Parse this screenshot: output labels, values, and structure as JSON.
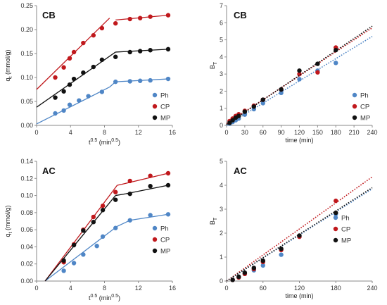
{
  "colors": {
    "Ph": "#4f86c6",
    "CP": "#c0181c",
    "MP": "#111111"
  },
  "chart_data": [
    {
      "type": "scatter",
      "title": "CB",
      "xlabel": "t",
      "xlabel_sup": "0.5",
      "xlabel_unit": " (min",
      "xlabel_unit_sup": "0.5",
      "xlabel_close": ")",
      "ylabel": "q",
      "ylabel_sub": "t",
      "ylabel_unit": " (mmol/g)",
      "xlim": [
        0,
        16
      ],
      "ylim": [
        0,
        0.25
      ],
      "xticks": [
        "0",
        "4",
        "8",
        "12",
        "16"
      ],
      "yticks": [
        "0.00",
        "0.05",
        "0.10",
        "0.15",
        "0.20",
        "0.25"
      ],
      "legend": "bottom-right",
      "series": [
        {
          "name": "Ph",
          "points": [
            [
              2.2,
              0.025
            ],
            [
              3.2,
              0.031
            ],
            [
              3.9,
              0.043
            ],
            [
              5.0,
              0.052
            ],
            [
              6.1,
              0.061
            ],
            [
              7.7,
              0.07
            ],
            [
              9.3,
              0.091
            ],
            [
              11.0,
              0.092
            ],
            [
              12.2,
              0.093
            ],
            [
              13.4,
              0.094
            ],
            [
              15.5,
              0.097
            ]
          ],
          "lines": [
            [
              [
                0,
                0.003
              ],
              [
                8.6,
                0.08
              ]
            ],
            [
              [
                8.6,
                0.08
              ],
              [
                9.3,
                0.091
              ]
            ],
            [
              [
                9.3,
                0.091
              ],
              [
                15.5,
                0.097
              ]
            ]
          ]
        },
        {
          "name": "CP",
          "points": [
            [
              2.2,
              0.1
            ],
            [
              3.2,
              0.121
            ],
            [
              3.9,
              0.14
            ],
            [
              4.4,
              0.153
            ],
            [
              5.5,
              0.172
            ],
            [
              6.7,
              0.188
            ],
            [
              7.7,
              0.203
            ],
            [
              9.3,
              0.213
            ],
            [
              11.0,
              0.222
            ],
            [
              12.2,
              0.224
            ],
            [
              13.4,
              0.227
            ],
            [
              15.5,
              0.23
            ]
          ],
          "lines": [
            [
              [
                0,
                0.075
              ],
              [
                8.6,
                0.224
              ]
            ],
            [
              [
                9.3,
                0.22
              ],
              [
                15.5,
                0.23
              ]
            ]
          ]
        },
        {
          "name": "MP",
          "points": [
            [
              2.2,
              0.058
            ],
            [
              3.2,
              0.071
            ],
            [
              3.9,
              0.085
            ],
            [
              4.4,
              0.097
            ],
            [
              5.5,
              0.11
            ],
            [
              6.7,
              0.122
            ],
            [
              7.7,
              0.137
            ],
            [
              9.3,
              0.143
            ],
            [
              11.0,
              0.153
            ],
            [
              12.2,
              0.155
            ],
            [
              13.4,
              0.157
            ],
            [
              15.5,
              0.159
            ]
          ],
          "lines": [
            [
              [
                0,
                0.038
              ],
              [
                9.3,
                0.153
              ]
            ],
            [
              [
                9.3,
                0.153
              ],
              [
                15.5,
                0.159
              ]
            ]
          ]
        }
      ]
    },
    {
      "type": "scatter",
      "title": "CB",
      "xlabel": "time (min)",
      "ylabel": "B",
      "ylabel_sub": "T",
      "xlim": [
        0,
        240
      ],
      "ylim": [
        0,
        7
      ],
      "xticks": [
        "0",
        "30",
        "60",
        "90",
        "120",
        "150",
        "180",
        "210",
        "240"
      ],
      "yticks": [
        "0",
        "1",
        "2",
        "3",
        "4",
        "5",
        "6",
        "7"
      ],
      "legend": "bottom-right",
      "series": [
        {
          "name": "Ph",
          "points": [
            [
              5,
              0.1
            ],
            [
              10,
              0.2
            ],
            [
              15,
              0.3
            ],
            [
              20,
              0.4
            ],
            [
              30,
              0.63
            ],
            [
              45,
              0.95
            ],
            [
              60,
              1.3
            ],
            [
              90,
              1.9
            ],
            [
              120,
              2.7
            ],
            [
              150,
              3.2
            ],
            [
              180,
              3.65
            ]
          ],
          "trend": [
            [
              0,
              0
            ],
            [
              240,
              5.2
            ]
          ]
        },
        {
          "name": "CP",
          "points": [
            [
              5,
              0.25
            ],
            [
              10,
              0.4
            ],
            [
              15,
              0.55
            ],
            [
              20,
              0.65
            ],
            [
              30,
              0.85
            ],
            [
              45,
              1.15
            ],
            [
              60,
              1.5
            ],
            [
              90,
              2.1
            ],
            [
              120,
              3.0
            ],
            [
              150,
              3.1
            ],
            [
              180,
              4.55
            ]
          ],
          "trend": [
            [
              0,
              0.1
            ],
            [
              240,
              5.7
            ]
          ]
        },
        {
          "name": "MP",
          "points": [
            [
              5,
              0.15
            ],
            [
              10,
              0.3
            ],
            [
              15,
              0.45
            ],
            [
              20,
              0.55
            ],
            [
              30,
              0.8
            ],
            [
              45,
              1.1
            ],
            [
              60,
              1.5
            ],
            [
              90,
              2.1
            ],
            [
              120,
              3.2
            ],
            [
              150,
              3.6
            ],
            [
              180,
              4.4
            ]
          ],
          "trend": [
            [
              0,
              0.05
            ],
            [
              240,
              5.8
            ]
          ]
        }
      ]
    },
    {
      "type": "scatter",
      "title": "AC",
      "xlabel": "t",
      "xlabel_sup": "0.5",
      "xlabel_unit": " (min",
      "xlabel_unit_sup": "0.5",
      "xlabel_close": ")",
      "ylabel": "q",
      "ylabel_sub": "t",
      "ylabel_unit": " (mmol/g)",
      "xlim": [
        0,
        16
      ],
      "ylim": [
        0,
        0.14
      ],
      "xticks": [
        "0",
        "4",
        "8",
        "12",
        "16"
      ],
      "yticks": [
        "0.00",
        "0.02",
        "0.04",
        "0.06",
        "0.08",
        "0.10",
        "0.12",
        "0.14"
      ],
      "legend": "bottom-right",
      "series": [
        {
          "name": "Ph",
          "points": [
            [
              3.2,
              0.012
            ],
            [
              4.4,
              0.021
            ],
            [
              5.5,
              0.031
            ],
            [
              7.1,
              0.041
            ],
            [
              7.8,
              0.052
            ],
            [
              9.3,
              0.062
            ],
            [
              11.0,
              0.071
            ],
            [
              13.4,
              0.077
            ],
            [
              15.5,
              0.078
            ]
          ],
          "lines": [
            [
              [
                1.0,
                0
              ],
              [
                9.5,
                0.064
              ]
            ],
            [
              [
                9.5,
                0.064
              ],
              [
                11.0,
                0.071
              ]
            ],
            [
              [
                11.0,
                0.071
              ],
              [
                15.5,
                0.078
              ]
            ]
          ]
        },
        {
          "name": "CP",
          "points": [
            [
              3.2,
              0.022
            ],
            [
              4.4,
              0.043
            ],
            [
              5.5,
              0.06
            ],
            [
              6.7,
              0.075
            ],
            [
              7.8,
              0.088
            ],
            [
              9.3,
              0.104
            ],
            [
              11.0,
              0.117
            ],
            [
              13.4,
              0.123
            ],
            [
              15.5,
              0.126
            ]
          ],
          "lines": [
            [
              [
                1.0,
                0
              ],
              [
                9.5,
                0.112
              ]
            ],
            [
              [
                9.5,
                0.112
              ],
              [
                10.0,
                0.113
              ]
            ],
            [
              [
                10.0,
                0.113
              ],
              [
                15.5,
                0.126
              ]
            ]
          ]
        },
        {
          "name": "MP",
          "points": [
            [
              3.2,
              0.024
            ],
            [
              4.4,
              0.042
            ],
            [
              5.5,
              0.059
            ],
            [
              6.7,
              0.069
            ],
            [
              7.8,
              0.083
            ],
            [
              9.3,
              0.095
            ],
            [
              11.0,
              0.102
            ],
            [
              13.4,
              0.111
            ],
            [
              15.5,
              0.112
            ]
          ],
          "lines": [
            [
              [
                1.0,
                0
              ],
              [
                9.3,
                0.1
              ]
            ],
            [
              [
                9.3,
                0.1
              ],
              [
                10.5,
                0.102
              ]
            ],
            [
              [
                10.5,
                0.102
              ],
              [
                15.5,
                0.112
              ]
            ]
          ]
        }
      ]
    },
    {
      "type": "scatter",
      "title": "AC",
      "xlabel": "time (min)",
      "ylabel": "B",
      "ylabel_sub": "T",
      "xlim": [
        0,
        240
      ],
      "ylim": [
        0,
        5
      ],
      "xticks": [
        "0",
        "60",
        "120",
        "180",
        "240"
      ],
      "yticks": [
        "0",
        "1",
        "2",
        "3",
        "4",
        "5"
      ],
      "legend": "right",
      "series": [
        {
          "name": "Ph",
          "points": [
            [
              10,
              0.05
            ],
            [
              20,
              0.15
            ],
            [
              30,
              0.3
            ],
            [
              45,
              0.45
            ],
            [
              60,
              0.65
            ],
            [
              90,
              1.1
            ],
            [
              120,
              1.85
            ],
            [
              180,
              2.8
            ]
          ],
          "trend": [
            [
              0,
              0
            ],
            [
              240,
              3.85
            ]
          ]
        },
        {
          "name": "CP",
          "points": [
            [
              10,
              0.05
            ],
            [
              20,
              0.15
            ],
            [
              30,
              0.3
            ],
            [
              45,
              0.5
            ],
            [
              60,
              0.8
            ],
            [
              90,
              1.3
            ],
            [
              120,
              1.85
            ],
            [
              180,
              3.35
            ]
          ],
          "trend": [
            [
              0,
              0
            ],
            [
              240,
              4.35
            ]
          ]
        },
        {
          "name": "MP",
          "points": [
            [
              10,
              0.05
            ],
            [
              20,
              0.18
            ],
            [
              30,
              0.35
            ],
            [
              45,
              0.55
            ],
            [
              60,
              0.85
            ],
            [
              90,
              1.35
            ],
            [
              120,
              1.9
            ],
            [
              180,
              2.85
            ]
          ],
          "trend": [
            [
              0,
              0
            ],
            [
              240,
              3.9
            ]
          ]
        }
      ]
    }
  ]
}
